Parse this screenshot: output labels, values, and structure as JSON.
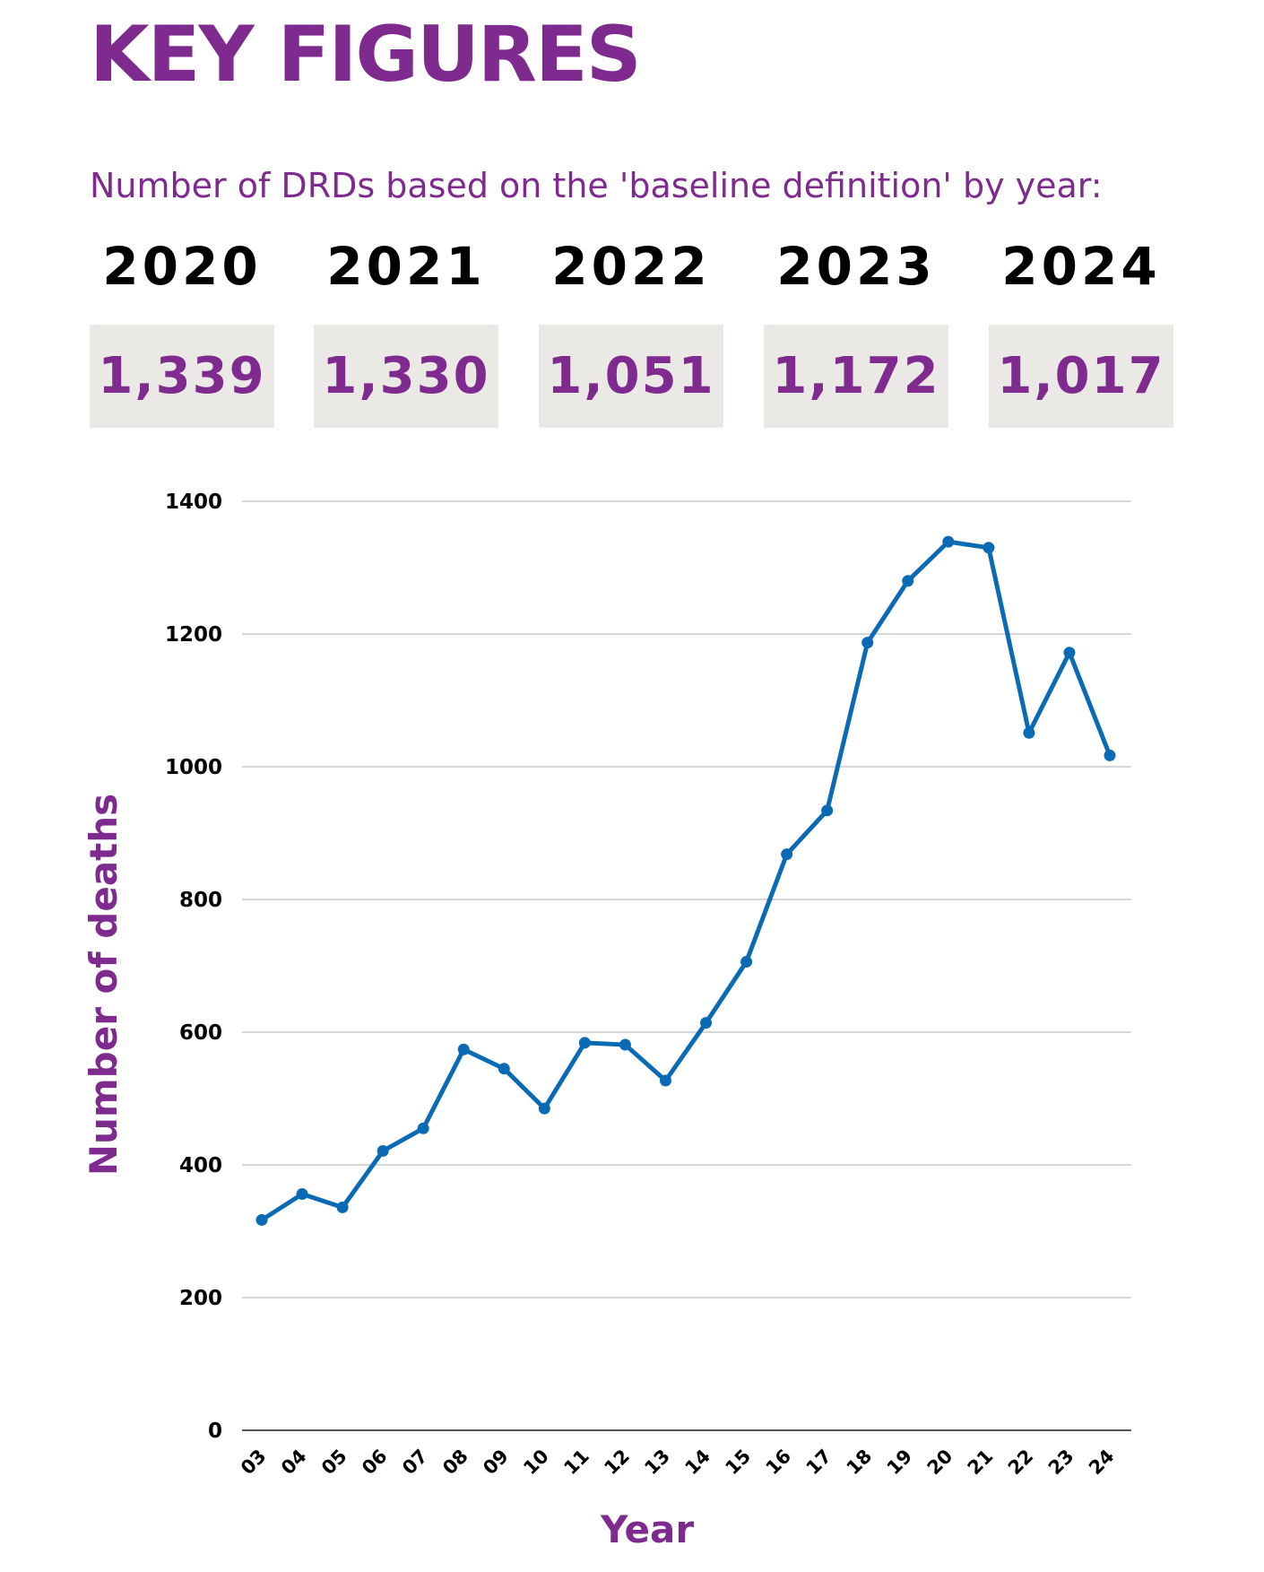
{
  "page": {
    "heading": "KEY FIGURES",
    "subheading": "Number of DRDs based on the 'baseline definition' by year:",
    "accent_color": "#7e2a8e",
    "key_figures": [
      {
        "year": "2020",
        "value": "1,339"
      },
      {
        "year": "2021",
        "value": "1,330"
      },
      {
        "year": "2022",
        "value": "1,051"
      },
      {
        "year": "2023",
        "value": "1,172"
      },
      {
        "year": "2024",
        "value": "1,017"
      }
    ]
  },
  "chart_data": {
    "type": "line",
    "title": "",
    "xlabel": "Year",
    "ylabel": "Number of deaths",
    "categories": [
      "03",
      "04",
      "05",
      "06",
      "07",
      "08",
      "09",
      "10",
      "11",
      "12",
      "13",
      "14",
      "15",
      "16",
      "17",
      "18",
      "19",
      "20",
      "21",
      "22",
      "23",
      "24"
    ],
    "series": [
      {
        "color": "#0a6ab4",
        "values": [
          317,
          356,
          336,
          421,
          455,
          574,
          545,
          485,
          584,
          581,
          527,
          614,
          706,
          868,
          934,
          1187,
          1280,
          1339,
          1330,
          1051,
          1172,
          1017
        ]
      }
    ],
    "yticks": [
      0,
      200,
      400,
      600,
      800,
      1000,
      1200,
      1400
    ],
    "ylim": [
      0,
      1400
    ],
    "grid": "horizontal",
    "legend": "none"
  }
}
